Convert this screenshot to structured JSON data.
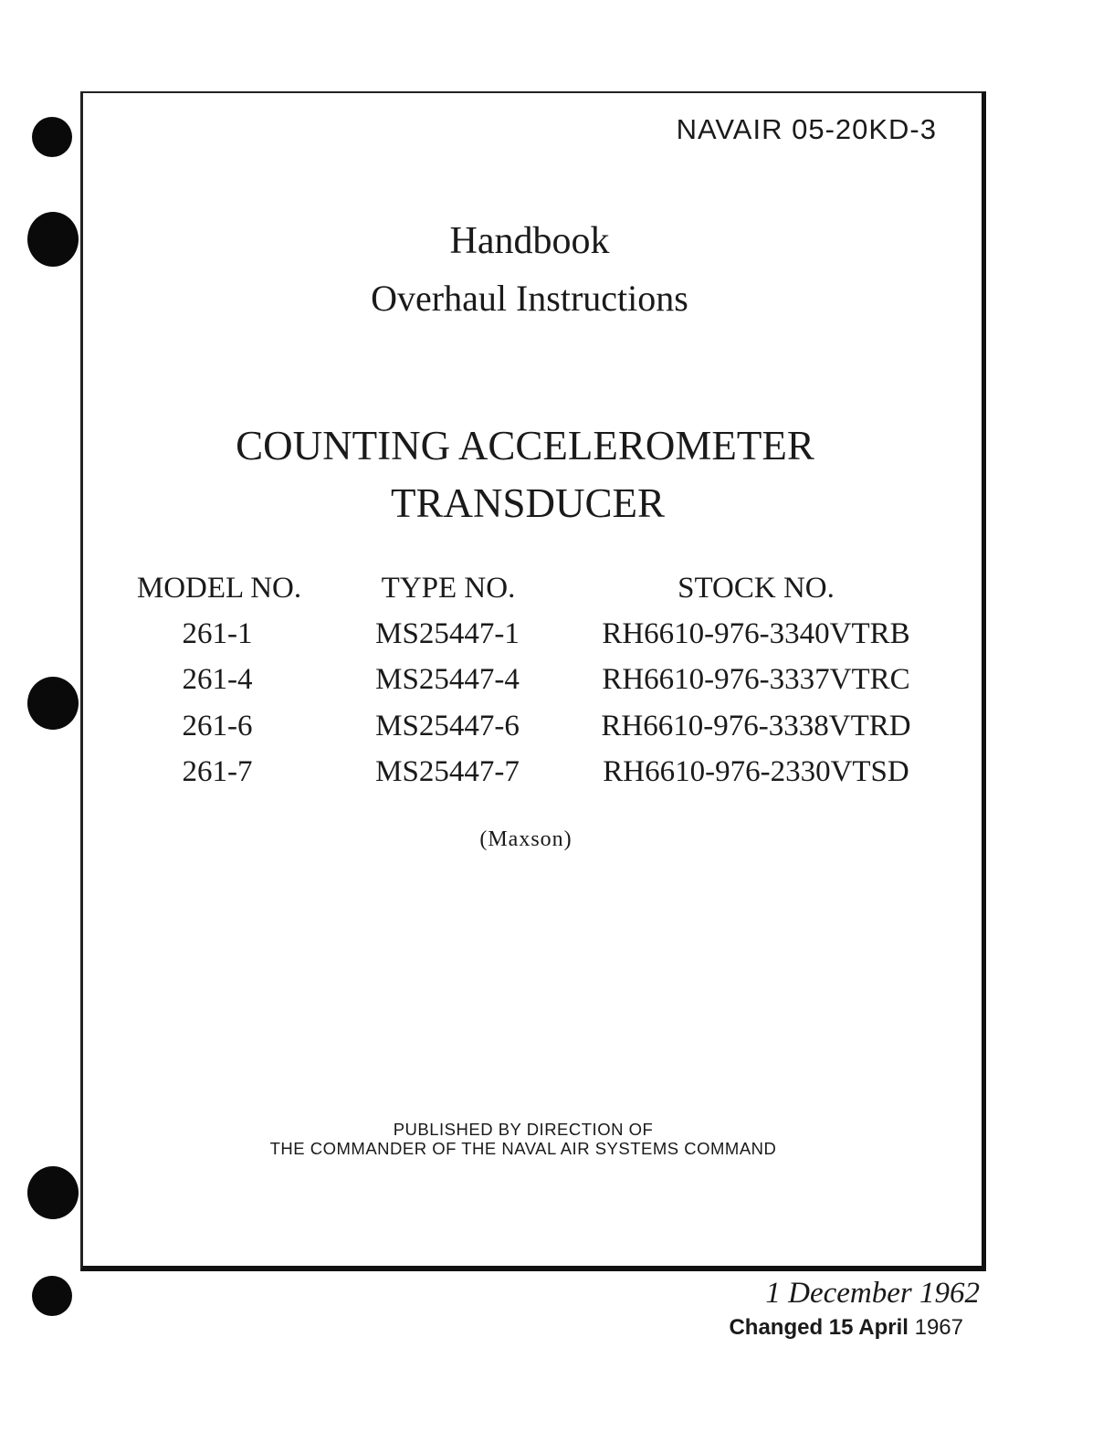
{
  "document_number": "NAVAIR 05-20KD-3",
  "title": {
    "line1": "Handbook",
    "line2": "Overhaul Instructions",
    "subject_line1": "COUNTING ACCELEROMETER",
    "subject_line2": "TRANSDUCER"
  },
  "table": {
    "headers": [
      "MODEL NO.",
      "TYPE NO.",
      "STOCK NO."
    ],
    "rows": [
      [
        "261-1",
        "MS25447-1",
        "RH6610-976-3340VTRB"
      ],
      [
        "261-4",
        "MS25447-4",
        "RH6610-976-3337VTRC"
      ],
      [
        "261-6",
        "MS25447-6",
        "RH6610-976-3338VTRD"
      ],
      [
        "261-7",
        "MS25447-7",
        "RH6610-976-2330VTSD"
      ]
    ]
  },
  "manufacturer": "(Maxson)",
  "publisher": {
    "line1": "PUBLISHED BY DIRECTION OF",
    "line2": "THE COMMANDER OF THE NAVAL AIR SYSTEMS COMMAND"
  },
  "date": "1  December 1962",
  "changed": {
    "label": "Changed 15 April",
    "year": "1967"
  }
}
